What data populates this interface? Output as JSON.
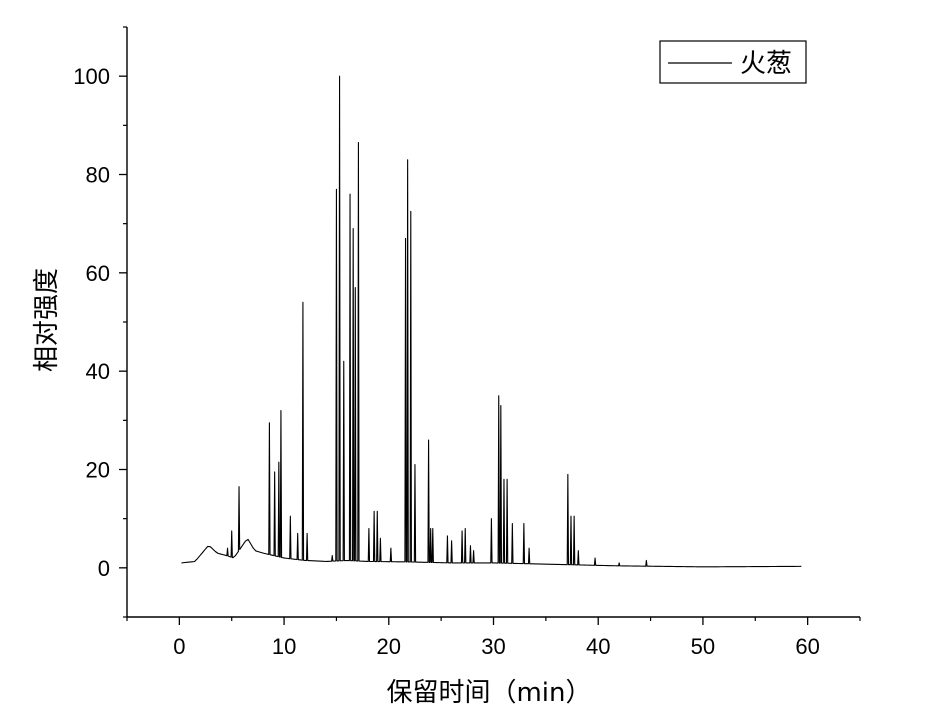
{
  "chart_data": {
    "type": "line",
    "title": "",
    "xlabel": "保留时间（min）",
    "ylabel": "相对强度",
    "xlim": [
      -5,
      65
    ],
    "ylim": [
      -10,
      110
    ],
    "x_ticks": [
      0,
      10,
      20,
      30,
      40,
      50,
      60
    ],
    "y_ticks": [
      0,
      20,
      40,
      60,
      80,
      100
    ],
    "grid": false,
    "legend": {
      "position": "top-right",
      "entries": [
        "火葱"
      ]
    },
    "colors": {
      "line": "#000000",
      "axis": "#000000",
      "background": "#ffffff"
    },
    "series": [
      {
        "name": "火葱",
        "baseline": [
          [
            0.2,
            1.0
          ],
          [
            1.5,
            1.3
          ],
          [
            2.8,
            4.6
          ],
          [
            3.6,
            3.0
          ],
          [
            4.5,
            2.5
          ],
          [
            5.2,
            2.0
          ],
          [
            6.5,
            6.0
          ],
          [
            7.2,
            3.5
          ],
          [
            8.0,
            3.0
          ],
          [
            9.0,
            2.5
          ],
          [
            10.0,
            2.0
          ],
          [
            12.0,
            1.5
          ],
          [
            14.0,
            1.3
          ],
          [
            16.0,
            1.5
          ],
          [
            18.0,
            1.3
          ],
          [
            22.0,
            1.2
          ],
          [
            26.0,
            1.0
          ],
          [
            30.0,
            1.0
          ],
          [
            34.0,
            0.8
          ],
          [
            38.0,
            0.6
          ],
          [
            42.0,
            0.4
          ],
          [
            46.0,
            0.3
          ],
          [
            50.0,
            0.2
          ],
          [
            59.4,
            0.3
          ]
        ],
        "peaks": [
          [
            4.6,
            4.0
          ],
          [
            5.0,
            7.5
          ],
          [
            5.7,
            16.5
          ],
          [
            8.6,
            29.5
          ],
          [
            9.1,
            19.5
          ],
          [
            9.5,
            21.5
          ],
          [
            9.7,
            32.0
          ],
          [
            10.6,
            10.5
          ],
          [
            11.3,
            7.0
          ],
          [
            11.8,
            54.0
          ],
          [
            12.2,
            7.0
          ],
          [
            14.6,
            2.5
          ],
          [
            15.0,
            77.0
          ],
          [
            15.3,
            100.0
          ],
          [
            15.7,
            42.0
          ],
          [
            16.3,
            76.0
          ],
          [
            16.6,
            69.0
          ],
          [
            16.8,
            57.0
          ],
          [
            17.1,
            86.5
          ],
          [
            18.1,
            8.0
          ],
          [
            18.6,
            11.5
          ],
          [
            18.9,
            11.5
          ],
          [
            19.2,
            6.0
          ],
          [
            20.2,
            4.0
          ],
          [
            21.6,
            67.0
          ],
          [
            21.8,
            83.0
          ],
          [
            22.1,
            72.5
          ],
          [
            22.5,
            21.0
          ],
          [
            23.8,
            26.0
          ],
          [
            24.0,
            8.0
          ],
          [
            24.2,
            8.0
          ],
          [
            25.6,
            6.5
          ],
          [
            26.0,
            5.5
          ],
          [
            27.0,
            7.5
          ],
          [
            27.3,
            8.0
          ],
          [
            27.8,
            4.5
          ],
          [
            28.1,
            3.5
          ],
          [
            29.8,
            10.0
          ],
          [
            30.5,
            35.0
          ],
          [
            30.7,
            33.0
          ],
          [
            31.0,
            18.0
          ],
          [
            31.3,
            18.0
          ],
          [
            31.8,
            9.0
          ],
          [
            32.9,
            9.0
          ],
          [
            33.4,
            4.0
          ],
          [
            37.1,
            19.0
          ],
          [
            37.4,
            10.5
          ],
          [
            37.7,
            10.5
          ],
          [
            38.1,
            3.5
          ],
          [
            39.7,
            2.0
          ],
          [
            42.0,
            1.0
          ],
          [
            44.6,
            1.5
          ]
        ]
      }
    ]
  }
}
